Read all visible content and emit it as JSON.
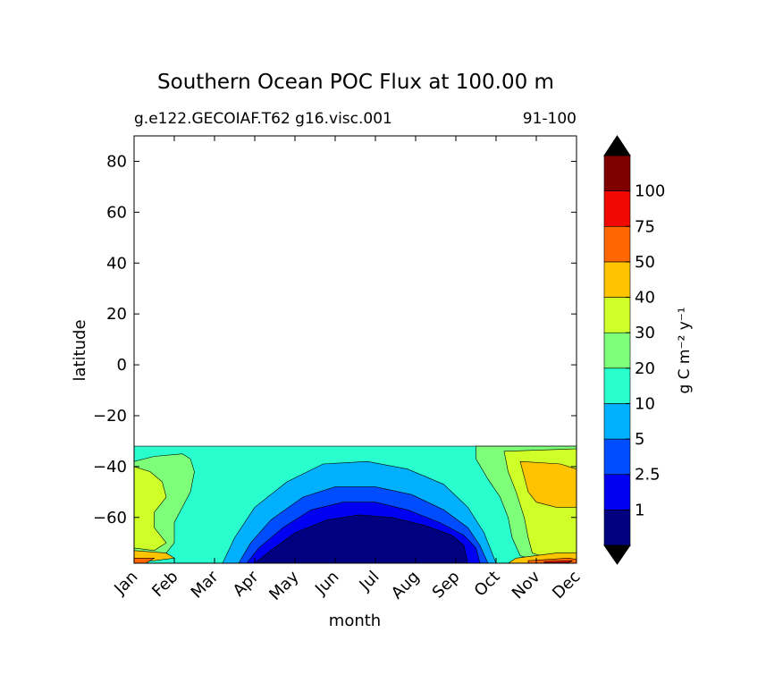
{
  "chart_data": {
    "type": "heatmap",
    "title": "Southern Ocean POC Flux at 100.00 m",
    "subtitle_left": "g.e122.GECOIAF.T62 g16.visc.001",
    "subtitle_right": "91-100",
    "xlabel": "month",
    "ylabel": "latitude",
    "x_ticks": [
      "Jan",
      "Feb",
      "Mar",
      "Apr",
      "May",
      "Jun",
      "Jul",
      "Aug",
      "Sep",
      "Oct",
      "Nov",
      "Dec"
    ],
    "y_ticks": [
      80,
      60,
      40,
      20,
      0,
      -20,
      -40,
      -60
    ],
    "y_tick_labels": [
      "80",
      "60",
      "40",
      "20",
      "0",
      "−20",
      "−40",
      "−60"
    ],
    "xlim": [
      1,
      12
    ],
    "ylim": [
      -78,
      90
    ],
    "data_lat_range": [
      -78,
      -32
    ],
    "colorbar": {
      "label": "g C m⁻² y⁻¹",
      "levels": [
        1,
        2.5,
        5,
        10,
        20,
        30,
        40,
        50,
        75,
        100
      ],
      "level_labels": [
        "1",
        "2.5",
        "5",
        "10",
        "20",
        "30",
        "40",
        "50",
        "75",
        "100"
      ],
      "colors": [
        "#000080",
        "#0000f2",
        "#004cff",
        "#00b0ff",
        "#29ffce",
        "#7dff7a",
        "#ceff29",
        "#ffc400",
        "#ff6800",
        "#f10800",
        "#800000"
      ],
      "extend": "both",
      "extend_low_color": "#000000",
      "extend_high_color": "#000000"
    },
    "regions": [
      {
        "level_index": 4,
        "points": [
          [
            1,
            -32
          ],
          [
            12,
            -32
          ],
          [
            12,
            -78
          ],
          [
            1,
            -78
          ]
        ]
      },
      {
        "level_index": 5,
        "points": [
          [
            1,
            -38
          ],
          [
            1.5,
            -36
          ],
          [
            2.2,
            -35
          ],
          [
            2.4,
            -37
          ],
          [
            2.5,
            -42
          ],
          [
            2.4,
            -50
          ],
          [
            2.2,
            -56
          ],
          [
            2.0,
            -62
          ],
          [
            2.0,
            -70
          ],
          [
            1.8,
            -74
          ],
          [
            1.2,
            -75
          ],
          [
            1,
            -74
          ]
        ]
      },
      {
        "level_index": 5,
        "points": [
          [
            9.5,
            -32
          ],
          [
            12,
            -32
          ],
          [
            12,
            -76
          ],
          [
            11,
            -77
          ],
          [
            10.6,
            -75
          ],
          [
            10.4,
            -68
          ],
          [
            10.3,
            -60
          ],
          [
            10.1,
            -52
          ],
          [
            9.8,
            -45
          ],
          [
            9.5,
            -37
          ]
        ]
      },
      {
        "level_index": 6,
        "points": [
          [
            1,
            -40
          ],
          [
            1.4,
            -42
          ],
          [
            1.7,
            -46
          ],
          [
            1.8,
            -52
          ],
          [
            1.5,
            -58
          ],
          [
            1.5,
            -64
          ],
          [
            1.8,
            -70
          ],
          [
            1.5,
            -73
          ],
          [
            1,
            -72
          ]
        ]
      },
      {
        "level_index": 6,
        "points": [
          [
            10.2,
            -34
          ],
          [
            12,
            -33
          ],
          [
            12,
            -75
          ],
          [
            11.3,
            -76
          ],
          [
            10.9,
            -74
          ],
          [
            10.8,
            -68
          ],
          [
            10.7,
            -60
          ],
          [
            10.5,
            -50
          ],
          [
            10.3,
            -42
          ]
        ]
      },
      {
        "level_index": 7,
        "points": [
          [
            10.6,
            -38
          ],
          [
            11.6,
            -39
          ],
          [
            12,
            -41
          ],
          [
            12,
            -56
          ],
          [
            11.5,
            -56
          ],
          [
            11.0,
            -54
          ],
          [
            10.8,
            -50
          ],
          [
            10.7,
            -44
          ]
        ]
      },
      {
        "level_index": 7,
        "points": [
          [
            1,
            -73
          ],
          [
            1.8,
            -74
          ],
          [
            2.0,
            -76
          ],
          [
            1.5,
            -77
          ],
          [
            1,
            -77
          ]
        ]
      },
      {
        "level_index": 7,
        "points": [
          [
            10.5,
            -76
          ],
          [
            11.5,
            -74
          ],
          [
            12,
            -74
          ],
          [
            12,
            -78
          ],
          [
            10.3,
            -78
          ]
        ]
      },
      {
        "level_index": 8,
        "points": [
          [
            1,
            -76
          ],
          [
            1.5,
            -76
          ],
          [
            1.3,
            -78
          ],
          [
            1,
            -78
          ]
        ]
      },
      {
        "level_index": 8,
        "points": [
          [
            10.8,
            -77
          ],
          [
            11.8,
            -76
          ],
          [
            12,
            -76.5
          ],
          [
            12,
            -78
          ],
          [
            10.8,
            -78
          ]
        ]
      },
      {
        "level_index": 9,
        "points": [
          [
            11.2,
            -77.3
          ],
          [
            11.9,
            -77
          ],
          [
            11.8,
            -77.8
          ],
          [
            11.2,
            -77.8
          ]
        ]
      },
      {
        "level_index": 3,
        "points": [
          [
            3.2,
            -78
          ],
          [
            3.5,
            -68
          ],
          [
            4.0,
            -56
          ],
          [
            4.8,
            -46
          ],
          [
            5.7,
            -39
          ],
          [
            6.8,
            -38
          ],
          [
            7.8,
            -41
          ],
          [
            8.7,
            -47
          ],
          [
            9.3,
            -56
          ],
          [
            9.7,
            -66
          ],
          [
            9.9,
            -74
          ],
          [
            10.0,
            -78
          ]
        ]
      },
      {
        "level_index": 2,
        "points": [
          [
            3.6,
            -78
          ],
          [
            3.9,
            -70
          ],
          [
            4.4,
            -61
          ],
          [
            5.2,
            -52
          ],
          [
            6.0,
            -48
          ],
          [
            7.0,
            -48
          ],
          [
            7.9,
            -51
          ],
          [
            8.7,
            -57
          ],
          [
            9.3,
            -64
          ],
          [
            9.6,
            -71
          ],
          [
            9.8,
            -78
          ]
        ]
      },
      {
        "level_index": 1,
        "points": [
          [
            3.8,
            -78
          ],
          [
            4.1,
            -72
          ],
          [
            4.7,
            -64
          ],
          [
            5.4,
            -57
          ],
          [
            6.2,
            -54
          ],
          [
            7.0,
            -54
          ],
          [
            7.8,
            -57
          ],
          [
            8.6,
            -62
          ],
          [
            9.2,
            -67
          ],
          [
            9.5,
            -72
          ],
          [
            9.6,
            -78
          ]
        ]
      },
      {
        "level_index": 0,
        "points": [
          [
            4.0,
            -78
          ],
          [
            4.4,
            -73
          ],
          [
            5.0,
            -66
          ],
          [
            5.8,
            -61
          ],
          [
            6.6,
            -59
          ],
          [
            7.4,
            -60
          ],
          [
            8.2,
            -63
          ],
          [
            8.9,
            -67
          ],
          [
            9.2,
            -71
          ],
          [
            9.3,
            -78
          ]
        ]
      }
    ]
  }
}
